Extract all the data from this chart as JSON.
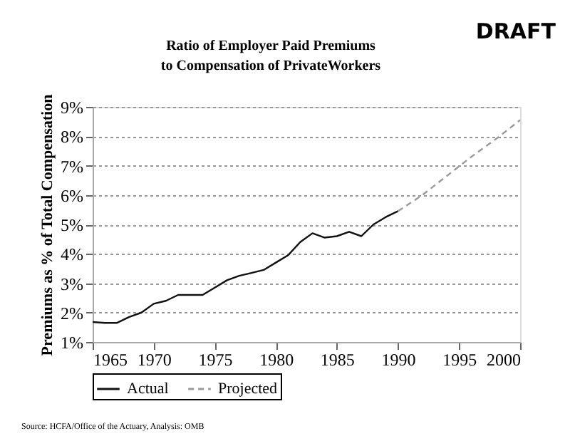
{
  "chart_data": {
    "type": "line",
    "title": [
      "Ratio of Employer Paid Premiums",
      "to Compensation of PrivateWorkers"
    ],
    "ylabel": "Premiums as % of Total Compensation",
    "annotations": [
      "DRAFT",
      "Source: HCFA/Office of the Actuary, Analysis: OMB"
    ],
    "xlim": [
      1965,
      2000
    ],
    "xticks": [
      1965,
      1970,
      1975,
      1980,
      1985,
      1990,
      1995,
      2000
    ],
    "ylim": [
      1,
      9
    ],
    "yticks": [
      {
        "value": 1,
        "label": "1%"
      },
      {
        "value": 2,
        "label": "2%"
      },
      {
        "value": 3,
        "label": "3%"
      },
      {
        "value": 4,
        "label": "4%"
      },
      {
        "value": 5,
        "label": "5%"
      },
      {
        "value": 6,
        "label": "6%"
      },
      {
        "value": 7,
        "label": "7%"
      },
      {
        "value": 8,
        "label": "8%"
      },
      {
        "value": 9,
        "label": "9%"
      }
    ],
    "grid": "y",
    "legend": "bottom",
    "marker": "none",
    "series": [
      {
        "name": "Actual",
        "color": "#111111",
        "line_style": "solid",
        "x": [
          1965,
          1966,
          1967,
          1968,
          1969,
          1970,
          1971,
          1972,
          1973,
          1974,
          1975,
          1976,
          1977,
          1978,
          1979,
          1980,
          1981,
          1982,
          1983,
          1984,
          1985,
          1986,
          1987,
          1988,
          1989,
          1990
        ],
        "values": [
          1.68,
          1.65,
          1.65,
          1.85,
          2.0,
          2.3,
          2.4,
          2.6,
          2.6,
          2.6,
          2.85,
          3.1,
          3.25,
          3.35,
          3.45,
          3.7,
          3.95,
          4.4,
          4.7,
          4.55,
          4.6,
          4.75,
          4.6,
          5.0,
          5.25,
          5.45
        ]
      },
      {
        "name": "Projected",
        "color": "#999999",
        "line_style": "dashed",
        "x": [
          1990,
          1992,
          1994,
          1996,
          1998,
          2000
        ],
        "values": [
          5.45,
          6.0,
          6.65,
          7.3,
          7.9,
          8.55
        ]
      }
    ]
  }
}
